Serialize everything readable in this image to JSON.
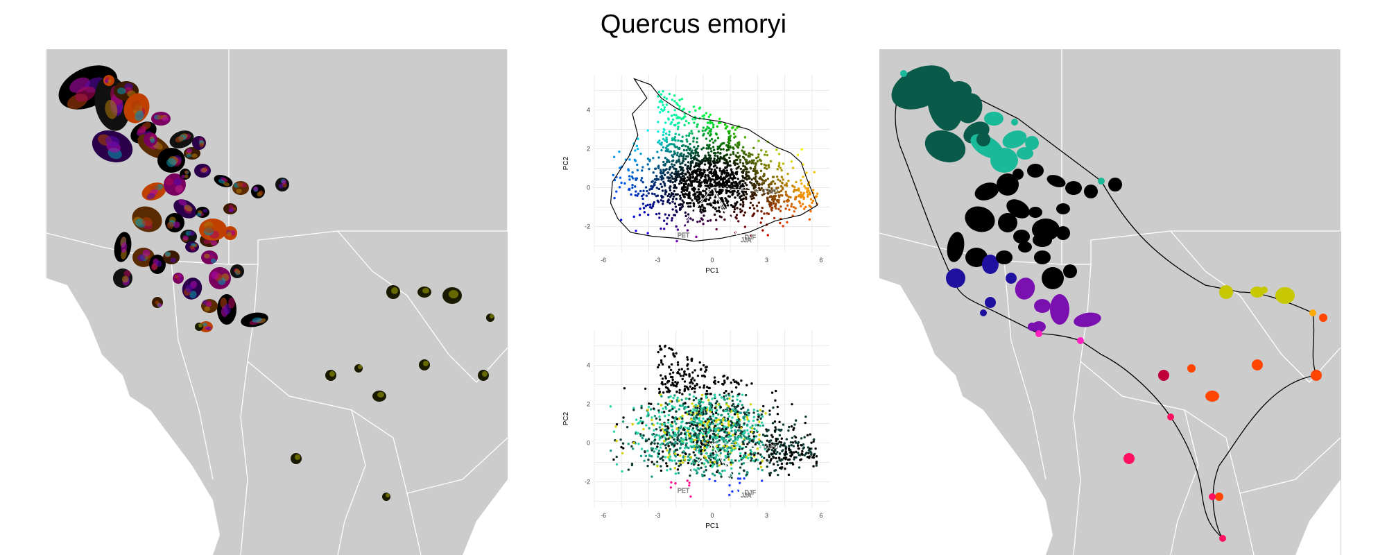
{
  "figure": {
    "title": "Quercus emoryi"
  },
  "colors": {
    "map_land": "#cccccc",
    "map_sea": "#ffffff",
    "map_border": "#ffffff",
    "hull": "#000000",
    "grid": "#e8e8e8"
  },
  "chart_data": [
    {
      "type": "scatter",
      "id": "pca-top",
      "xlabel": "PC1",
      "ylabel": "PC2",
      "xlim": [
        -6.5,
        6.5
      ],
      "ylim": [
        -3.3,
        5.8
      ],
      "xticks": [
        -6,
        -3,
        0,
        3,
        6
      ],
      "yticks": [
        -2,
        0,
        2,
        4
      ],
      "grid": true,
      "hull": [
        [
          -4.3,
          5.6
        ],
        [
          -3.4,
          5.3
        ],
        [
          -2.8,
          4.6
        ],
        [
          -2.0,
          4.1
        ],
        [
          -1.0,
          3.6
        ],
        [
          0.5,
          3.4
        ],
        [
          2.0,
          3.0
        ],
        [
          3.5,
          2.1
        ],
        [
          4.3,
          1.8
        ],
        [
          4.9,
          1.3
        ],
        [
          5.2,
          0.5
        ],
        [
          5.8,
          -0.9
        ],
        [
          4.9,
          -1.4
        ],
        [
          3.5,
          -1.7
        ],
        [
          2.0,
          -2.3
        ],
        [
          0.5,
          -2.6
        ],
        [
          -1.0,
          -2.75
        ],
        [
          -2.0,
          -2.6
        ],
        [
          -3.3,
          -2.5
        ],
        [
          -4.5,
          -2.3
        ],
        [
          -5.2,
          -1.6
        ],
        [
          -5.6,
          -0.8
        ],
        [
          -5.5,
          0.3
        ],
        [
          -4.6,
          1.6
        ],
        [
          -4.1,
          2.7
        ],
        [
          -4.4,
          3.8
        ],
        [
          -3.6,
          4.6
        ]
      ],
      "loadings": [
        {
          "label": "CWD",
          "x": 2.75,
          "y": -0.2
        },
        {
          "label": "PET",
          "x": -2.0,
          "y": -2.45
        },
        {
          "label": "DJF",
          "x": 1.7,
          "y": -2.55
        },
        {
          "label": "JJA",
          "x": 1.5,
          "y": -2.7
        }
      ],
      "coloring": "continuous-pc-space"
    },
    {
      "type": "scatter",
      "id": "pca-bottom",
      "xlabel": "PC1",
      "ylabel": "PC2",
      "xlim": [
        -6.5,
        6.5
      ],
      "ylim": [
        -3.3,
        5.8
      ],
      "xticks": [
        -6,
        -3,
        0,
        3,
        6
      ],
      "yticks": [
        -2,
        0,
        2,
        4
      ],
      "grid": true,
      "loadings": [
        {
          "label": "CWD",
          "x": 2.75,
          "y": -0.2
        },
        {
          "label": "PET",
          "x": -2.0,
          "y": -2.45
        },
        {
          "label": "DJF",
          "x": 1.7,
          "y": -2.55
        },
        {
          "label": "JJA",
          "x": 1.5,
          "y": -2.7
        }
      ],
      "coloring": "geographic-clusters",
      "cluster_colors": [
        "#000000",
        "#0d3b33",
        "#1a9c82",
        "#2ad4a8",
        "#d4d400",
        "#ff1493",
        "#6a0dad",
        "#1e3cff",
        "#ff5a00"
      ]
    }
  ],
  "maps": {
    "left": {
      "coloring": "multicolor-by-pc"
    },
    "right": {
      "coloring": "geographic-clusters"
    }
  }
}
